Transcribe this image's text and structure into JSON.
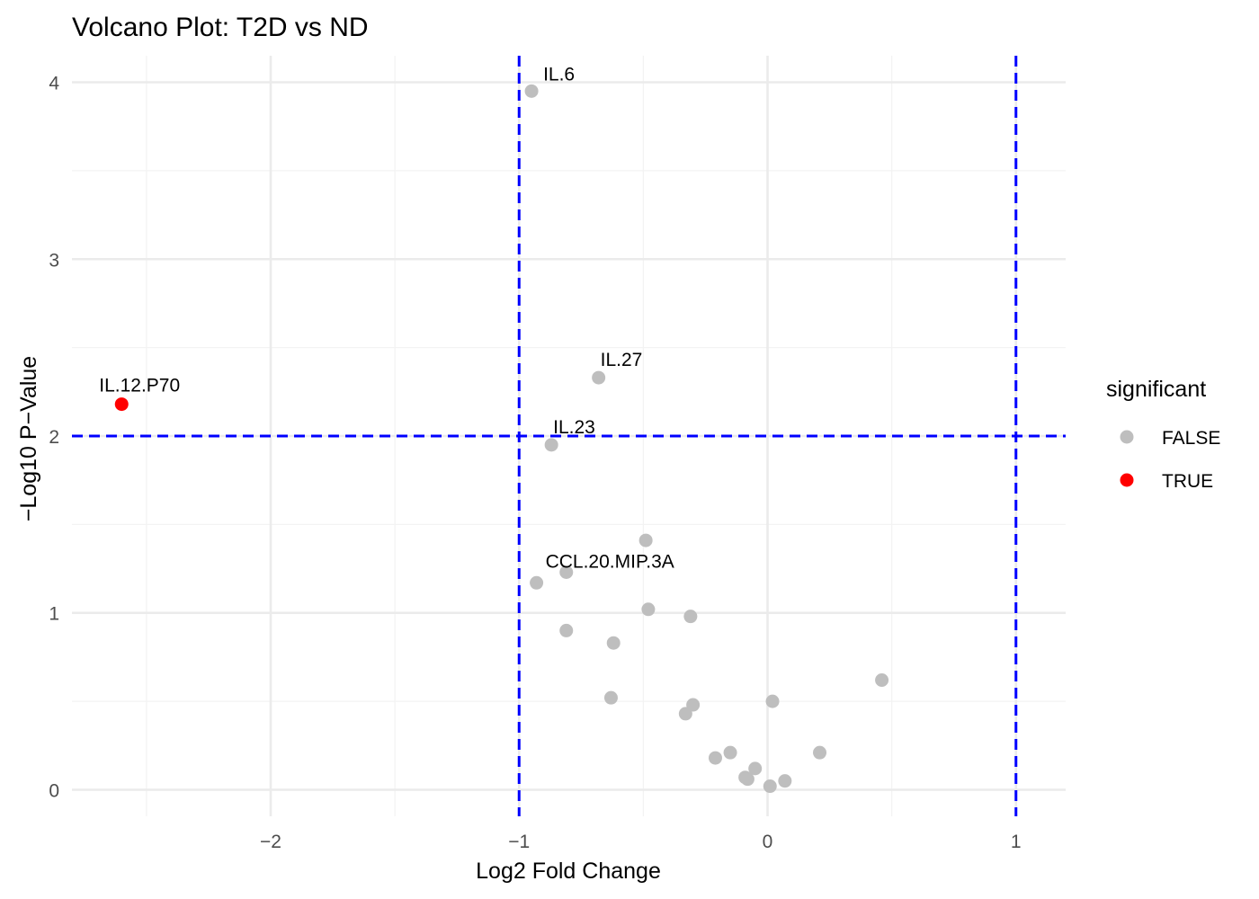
{
  "chart_data": {
    "type": "scatter",
    "title": "Volcano Plot: T2D vs ND",
    "xlabel": "Log2 Fold Change",
    "ylabel": "−Log10 P−Value",
    "xlim": [
      -2.8,
      1.2
    ],
    "ylim": [
      -0.15,
      4.15
    ],
    "x_ticks": [
      {
        "value": -2,
        "label": "−2"
      },
      {
        "value": -1,
        "label": "−1"
      },
      {
        "value": 0,
        "label": "0"
      },
      {
        "value": 1,
        "label": "1"
      }
    ],
    "y_ticks": [
      {
        "value": 0,
        "label": "0"
      },
      {
        "value": 1,
        "label": "1"
      },
      {
        "value": 2,
        "label": "2"
      },
      {
        "value": 3,
        "label": "3"
      },
      {
        "value": 4,
        "label": "4"
      }
    ],
    "grid": true,
    "thresholds": {
      "vertical": [
        -1,
        1
      ],
      "horizontal": [
        2
      ],
      "color": "#0000ff",
      "style": "dashed"
    },
    "legend": {
      "title": "significant",
      "placement": "right",
      "entries": [
        {
          "label": "FALSE",
          "color": "#bebebe"
        },
        {
          "label": "TRUE",
          "color": "#ff0000"
        }
      ]
    },
    "points": [
      {
        "x": -2.6,
        "y": 2.18,
        "significant": true,
        "label": "IL.12.P70"
      },
      {
        "x": -0.95,
        "y": 3.95,
        "significant": false,
        "label": "IL.6"
      },
      {
        "x": -0.68,
        "y": 2.33,
        "significant": false,
        "label": "IL.27"
      },
      {
        "x": -0.87,
        "y": 1.95,
        "significant": false,
        "label": "IL.23"
      },
      {
        "x": -0.93,
        "y": 1.17,
        "significant": false,
        "label": "CCL.20.MIP.3A"
      },
      {
        "x": -0.81,
        "y": 1.23,
        "significant": false
      },
      {
        "x": -0.49,
        "y": 1.41,
        "significant": false
      },
      {
        "x": -0.48,
        "y": 1.02,
        "significant": false
      },
      {
        "x": -0.31,
        "y": 0.98,
        "significant": false
      },
      {
        "x": -0.81,
        "y": 0.9,
        "significant": false
      },
      {
        "x": -0.62,
        "y": 0.83,
        "significant": false
      },
      {
        "x": -0.63,
        "y": 0.52,
        "significant": false
      },
      {
        "x": -0.3,
        "y": 0.48,
        "significant": false
      },
      {
        "x": -0.33,
        "y": 0.43,
        "significant": false
      },
      {
        "x": 0.02,
        "y": 0.5,
        "significant": false
      },
      {
        "x": 0.46,
        "y": 0.62,
        "significant": false
      },
      {
        "x": 0.21,
        "y": 0.21,
        "significant": false
      },
      {
        "x": -0.15,
        "y": 0.21,
        "significant": false
      },
      {
        "x": -0.21,
        "y": 0.18,
        "significant": false
      },
      {
        "x": -0.05,
        "y": 0.12,
        "significant": false
      },
      {
        "x": -0.09,
        "y": 0.07,
        "significant": false
      },
      {
        "x": -0.08,
        "y": 0.06,
        "significant": false
      },
      {
        "x": 0.07,
        "y": 0.05,
        "significant": false
      },
      {
        "x": 0.01,
        "y": 0.02,
        "significant": false
      }
    ]
  }
}
